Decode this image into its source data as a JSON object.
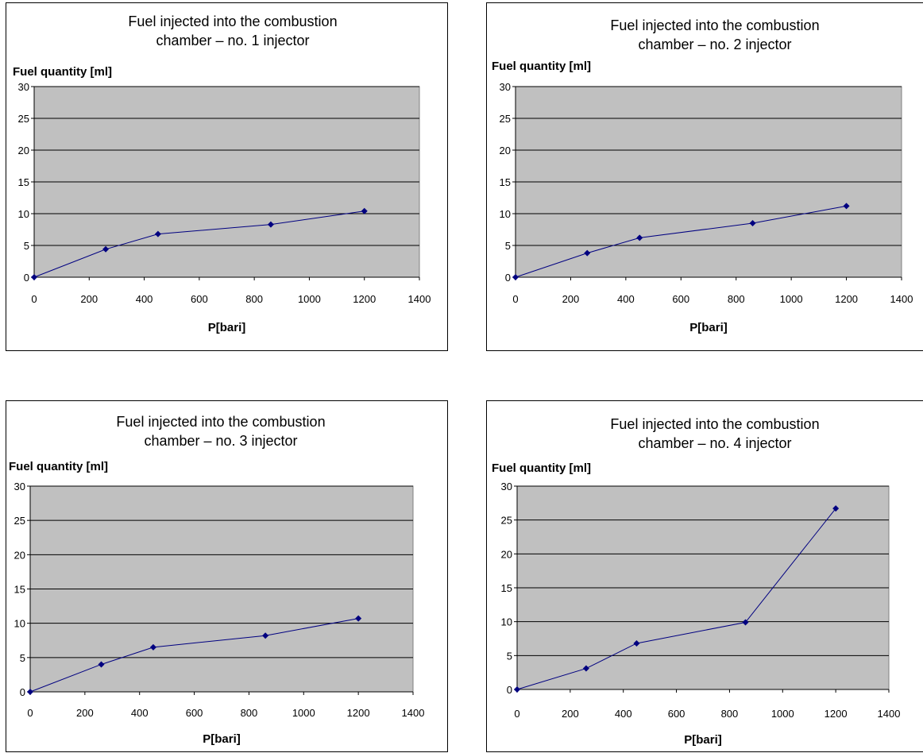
{
  "chart_data": [
    {
      "type": "line",
      "title": [
        "Fuel injected into the combustion",
        "chamber – no. 1 injector"
      ],
      "ylabel": "Fuel quantity [ml]",
      "xlabel": "P[bari]",
      "xlim": [
        0,
        1400
      ],
      "ylim": [
        0,
        30
      ],
      "xticks": [
        0,
        200,
        400,
        600,
        800,
        1000,
        1200,
        1400
      ],
      "yticks": [
        0,
        5,
        10,
        15,
        20,
        25,
        30
      ],
      "grid": true,
      "series": [
        {
          "x": [
            0,
            260,
            450,
            860,
            1200
          ],
          "y": [
            0,
            4.4,
            6.8,
            8.3,
            10.4
          ]
        }
      ]
    },
    {
      "type": "line",
      "title": [
        "Fuel injected into the combustion",
        "chamber – no. 2 injector"
      ],
      "ylabel": "Fuel quantity [ml]",
      "xlabel": "P[bari]",
      "xlim": [
        0,
        1400
      ],
      "ylim": [
        0,
        30
      ],
      "xticks": [
        0,
        200,
        400,
        600,
        800,
        1000,
        1200,
        1400
      ],
      "yticks": [
        0,
        5,
        10,
        15,
        20,
        25,
        30
      ],
      "grid": true,
      "series": [
        {
          "x": [
            0,
            260,
            450,
            860,
            1200
          ],
          "y": [
            0,
            3.8,
            6.2,
            8.5,
            11.2
          ]
        }
      ]
    },
    {
      "type": "line",
      "title": [
        "Fuel injected into the combustion",
        "chamber – no. 3 injector"
      ],
      "ylabel": "Fuel quantity [ml]",
      "xlabel": "P[bari]",
      "xlim": [
        0,
        1400
      ],
      "ylim": [
        0,
        30
      ],
      "xticks": [
        0,
        200,
        400,
        600,
        800,
        1000,
        1200,
        1400
      ],
      "yticks": [
        0,
        5,
        10,
        15,
        20,
        25,
        30
      ],
      "grid": true,
      "series": [
        {
          "x": [
            0,
            260,
            450,
            860,
            1200
          ],
          "y": [
            0,
            4.0,
            6.5,
            8.2,
            10.7
          ]
        }
      ]
    },
    {
      "type": "line",
      "title": [
        "Fuel injected into the combustion",
        "chamber – no. 4 injector"
      ],
      "ylabel": "Fuel quantity [ml]",
      "xlabel": "P[bari]",
      "xlim": [
        0,
        1400
      ],
      "ylim": [
        0,
        30
      ],
      "xticks": [
        0,
        200,
        400,
        600,
        800,
        1000,
        1200,
        1400
      ],
      "yticks": [
        0,
        5,
        10,
        15,
        20,
        25,
        30
      ],
      "grid": true,
      "series": [
        {
          "x": [
            0,
            260,
            450,
            860,
            1200
          ],
          "y": [
            0,
            3.1,
            6.8,
            9.9,
            26.7
          ]
        }
      ]
    }
  ],
  "colors": {
    "plot_area": "#c0c0c0",
    "series_line": "#000080",
    "gridline": "#000000"
  }
}
